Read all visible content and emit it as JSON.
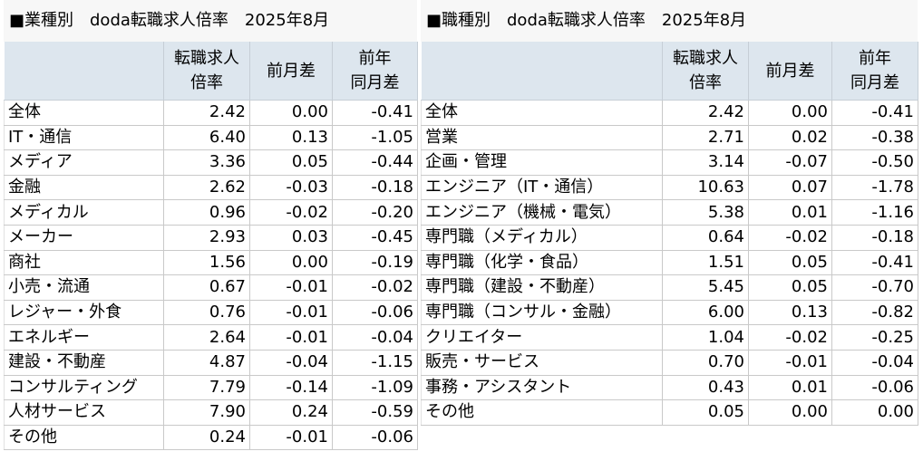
{
  "left": {
    "title": "■業種別　doda転職求人倍率　2025年8月",
    "headers": {
      "ratio_line1": "転職求人",
      "ratio_line2": "倍率",
      "mom": "前月差",
      "yoy_line1": "前年",
      "yoy_line2": "同月差"
    },
    "rows": [
      {
        "name": "全体",
        "ratio": "2.42",
        "mom": "0.00",
        "yoy": "-0.41"
      },
      {
        "name": "IT・通信",
        "ratio": "6.40",
        "mom": "0.13",
        "yoy": "-1.05"
      },
      {
        "name": "メディア",
        "ratio": "3.36",
        "mom": "0.05",
        "yoy": "-0.44"
      },
      {
        "name": "金融",
        "ratio": "2.62",
        "mom": "-0.03",
        "yoy": "-0.18"
      },
      {
        "name": "メディカル",
        "ratio": "0.96",
        "mom": "-0.02",
        "yoy": "-0.20"
      },
      {
        "name": "メーカー",
        "ratio": "2.93",
        "mom": "0.03",
        "yoy": "-0.45"
      },
      {
        "name": "商社",
        "ratio": "1.56",
        "mom": "0.00",
        "yoy": "-0.19"
      },
      {
        "name": "小売・流通",
        "ratio": "0.67",
        "mom": "-0.01",
        "yoy": "-0.02"
      },
      {
        "name": "レジャー・外食",
        "ratio": "0.76",
        "mom": "-0.01",
        "yoy": "-0.06"
      },
      {
        "name": "エネルギー",
        "ratio": "2.64",
        "mom": "-0.01",
        "yoy": "-0.04"
      },
      {
        "name": "建設・不動産",
        "ratio": "4.87",
        "mom": "-0.04",
        "yoy": "-1.15"
      },
      {
        "name": "コンサルティング",
        "ratio": "7.79",
        "mom": "-0.14",
        "yoy": "-1.09"
      },
      {
        "name": "人材サービス",
        "ratio": "7.90",
        "mom": "0.24",
        "yoy": "-0.59"
      },
      {
        "name": "その他",
        "ratio": "0.24",
        "mom": "-0.01",
        "yoy": "-0.06"
      }
    ]
  },
  "right": {
    "title": "■職種別　doda転職求人倍率　2025年8月",
    "headers": {
      "ratio_line1": "転職求人",
      "ratio_line2": "倍率",
      "mom": "前月差",
      "yoy_line1": "前年",
      "yoy_line2": "同月差"
    },
    "rows": [
      {
        "name": "全体",
        "ratio": "2.42",
        "mom": "0.00",
        "yoy": "-0.41"
      },
      {
        "name": "営業",
        "ratio": "2.71",
        "mom": "0.02",
        "yoy": "-0.38"
      },
      {
        "name": "企画・管理",
        "ratio": "3.14",
        "mom": "-0.07",
        "yoy": "-0.50"
      },
      {
        "name": "エンジニア（IT・通信）",
        "ratio": "10.63",
        "mom": "0.07",
        "yoy": "-1.78"
      },
      {
        "name": "エンジニア（機械・電気）",
        "ratio": "5.38",
        "mom": "0.01",
        "yoy": "-1.16"
      },
      {
        "name": "専門職（メディカル）",
        "ratio": "0.64",
        "mom": "-0.02",
        "yoy": "-0.18"
      },
      {
        "name": "専門職（化学・食品）",
        "ratio": "1.51",
        "mom": "0.05",
        "yoy": "-0.41"
      },
      {
        "name": "専門職（建設・不動産）",
        "ratio": "5.45",
        "mom": "0.05",
        "yoy": "-0.70"
      },
      {
        "name": "専門職（コンサル・金融）",
        "ratio": "6.00",
        "mom": "0.13",
        "yoy": "-0.82"
      },
      {
        "name": "クリエイター",
        "ratio": "1.04",
        "mom": "-0.02",
        "yoy": "-0.25"
      },
      {
        "name": "販売・サービス",
        "ratio": "0.70",
        "mom": "-0.01",
        "yoy": "-0.04"
      },
      {
        "name": "事務・アシスタント",
        "ratio": "0.43",
        "mom": "0.01",
        "yoy": "-0.06"
      },
      {
        "name": "その他",
        "ratio": "0.05",
        "mom": "0.00",
        "yoy": "0.00"
      }
    ]
  }
}
